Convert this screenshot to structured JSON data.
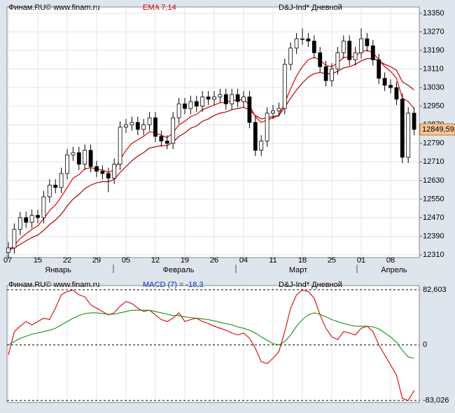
{
  "chart_data": [
    {
      "type": "candlestick",
      "source": "Финам.RU©  www.finam.ru",
      "indicator": "EMA 7,14",
      "instrument": "D&J-Ind* Дневной",
      "categories": [
        "07",
        null,
        null,
        null,
        null,
        "15",
        null,
        null,
        null,
        null,
        "22",
        null,
        null,
        null,
        null,
        "29",
        null,
        null,
        null,
        null,
        "05",
        null,
        null,
        null,
        null,
        "12",
        null,
        null,
        null,
        null,
        "19",
        null,
        null,
        null,
        null,
        "26",
        null,
        null,
        null,
        null,
        "04",
        null,
        null,
        null,
        null,
        "11",
        null,
        null,
        null,
        null,
        "18",
        null,
        null,
        null,
        null,
        "25",
        null,
        null,
        null,
        null,
        "01",
        null,
        null,
        null,
        null,
        "08",
        null,
        null,
        null,
        null
      ],
      "months": [
        "Январь",
        "Февраль",
        "Март",
        "Апрель"
      ],
      "open": [
        12320,
        12340,
        12420,
        12470,
        12450,
        12480,
        12470,
        12560,
        12610,
        12600,
        12660,
        12740,
        12750,
        12700,
        12760,
        12690,
        12670,
        12660,
        12640,
        12700,
        12860,
        12870,
        12880,
        12850,
        12870,
        12900,
        12820,
        12800,
        12790,
        12900,
        12960,
        12940,
        12970,
        12950,
        12990,
        12980,
        12990,
        13000,
        12960,
        13000,
        12970,
        12990,
        12880,
        12760,
        12800,
        12920,
        12930,
        12940,
        13130,
        13200,
        13240,
        13240,
        13230,
        13180,
        13120,
        13060,
        13110,
        13180,
        13230,
        13150,
        13180,
        13240,
        13210,
        13150,
        13070,
        13040,
        13030,
        12980,
        12730,
        12920
      ],
      "high": [
        12365,
        12445,
        12495,
        12495,
        12505,
        12505,
        12585,
        12635,
        12635,
        12685,
        12765,
        12775,
        12775,
        12785,
        12785,
        12715,
        12695,
        12685,
        12725,
        12885,
        12895,
        12905,
        12905,
        12895,
        12925,
        12925,
        12845,
        12825,
        12925,
        12985,
        12985,
        12995,
        12995,
        13015,
        13015,
        13015,
        13025,
        13025,
        13025,
        13025,
        13015,
        13015,
        12905,
        12825,
        12945,
        12955,
        12965,
        13155,
        13225,
        13265,
        13285,
        13265,
        13255,
        13205,
        13145,
        13135,
        13205,
        13255,
        13255,
        13205,
        13285,
        13265,
        13235,
        13175,
        13095,
        13065,
        13055,
        13005,
        12945,
        12945
      ],
      "low": [
        12295,
        12315,
        12395,
        12425,
        12425,
        12445,
        12445,
        12535,
        12575,
        12575,
        12635,
        12715,
        12675,
        12675,
        12665,
        12645,
        12635,
        12580,
        12615,
        12675,
        12835,
        12845,
        12825,
        12825,
        12845,
        12795,
        12775,
        12765,
        12765,
        12875,
        12915,
        12915,
        12925,
        12925,
        12955,
        12955,
        12965,
        12935,
        12935,
        12945,
        12945,
        12855,
        12735,
        12735,
        12775,
        12895,
        12905,
        12915,
        13105,
        13175,
        13215,
        13205,
        13155,
        13095,
        13035,
        13035,
        13085,
        13155,
        13125,
        13125,
        13155,
        13185,
        13125,
        13045,
        13015,
        13005,
        12955,
        12705,
        12705,
        12825
      ],
      "close": [
        12340,
        12420,
        12470,
        12450,
        12480,
        12470,
        12560,
        12610,
        12600,
        12660,
        12740,
        12750,
        12700,
        12760,
        12690,
        12670,
        12660,
        12640,
        12700,
        12860,
        12870,
        12880,
        12850,
        12870,
        12900,
        12820,
        12800,
        12790,
        12900,
        12960,
        12940,
        12970,
        12950,
        12990,
        12980,
        12990,
        13000,
        12960,
        13000,
        12970,
        12990,
        12880,
        12760,
        12800,
        12920,
        12930,
        12940,
        13130,
        13200,
        13240,
        13240,
        13230,
        13180,
        13120,
        13060,
        13110,
        13180,
        13230,
        13150,
        13180,
        13240,
        13210,
        13150,
        13070,
        13040,
        13030,
        12980,
        12730,
        12920,
        12850
      ],
      "series": [
        {
          "color": "#e00000",
          "values": [
            12330,
            12350,
            12380,
            12400,
            12420,
            12435,
            12465,
            12500,
            12525,
            12560,
            12600,
            12640,
            12655,
            12680,
            12685,
            12680,
            12675,
            12665,
            12675,
            12720,
            12760,
            12790,
            12805,
            12820,
            12840,
            12835,
            12825,
            12815,
            12835,
            12870,
            12885,
            12905,
            12915,
            12935,
            12945,
            12955,
            12965,
            12965,
            12975,
            12975,
            12980,
            12955,
            12905,
            12880,
            12890,
            12900,
            12910,
            12965,
            13025,
            13080,
            13120,
            13150,
            13160,
            13150,
            13125,
            13120,
            13135,
            13160,
            13160,
            13165,
            13185,
            13190,
            13180,
            13150,
            13120,
            13100,
            13070,
            12985,
            12970,
            12940
          ]
        },
        {
          "color": "#b00000",
          "values": [
            12330,
            12340,
            12355,
            12370,
            12385,
            12395,
            12415,
            12440,
            12460,
            12485,
            12520,
            12550,
            12570,
            12595,
            12610,
            12620,
            12625,
            12625,
            12635,
            12665,
            12690,
            12715,
            12735,
            12750,
            12770,
            12775,
            12780,
            12780,
            12795,
            12820,
            12835,
            12855,
            12865,
            12885,
            12895,
            12910,
            12920,
            12925,
            12935,
            12940,
            12945,
            12935,
            12910,
            12895,
            12900,
            12905,
            12910,
            12945,
            12985,
            13020,
            13050,
            13075,
            13090,
            13095,
            13090,
            13090,
            13100,
            13115,
            13120,
            13130,
            13145,
            13155,
            13155,
            13145,
            13130,
            13120,
            13105,
            13055,
            13040,
            13020
          ]
        }
      ],
      "up_color": "#ffffff",
      "down_color": "#000000",
      "ylim": [
        12298,
        13377
      ],
      "yticks": [
        12310,
        12390,
        12470,
        12550,
        12630,
        12710,
        12790,
        12870,
        12950,
        13030,
        13110,
        13190,
        13270,
        13350
      ],
      "last_price": {
        "value": 12849.59,
        "label": "12849,59"
      },
      "grid": true
    },
    {
      "type": "line",
      "source": "Финам.RU©  www.finam.ru",
      "indicator": "MACD (7) = -18,3",
      "instrument": "D&J-Ind* Дневной",
      "series": [
        {
          "color": "#e00000",
          "values": [
            -15,
            20,
            28,
            35,
            30,
            35,
            40,
            38,
            55,
            75,
            80,
            82,
            75,
            72,
            60,
            55,
            50,
            45,
            48,
            58,
            65,
            62,
            55,
            50,
            52,
            45,
            38,
            35,
            40,
            48,
            35,
            38,
            40,
            35,
            32,
            28,
            25,
            22,
            18,
            15,
            18,
            10,
            -5,
            -25,
            -28,
            -20,
            -10,
            20,
            55,
            75,
            82,
            80,
            70,
            45,
            25,
            12,
            8,
            20,
            18,
            15,
            25,
            28,
            20,
            0,
            -15,
            -30,
            -45,
            -80,
            -83,
            -68
          ]
        },
        {
          "color": "#109010",
          "values": [
            0,
            5,
            10,
            13,
            16,
            18,
            20,
            22,
            25,
            30,
            35,
            40,
            44,
            47,
            48,
            48,
            47,
            46,
            46,
            48,
            50,
            52,
            52,
            52,
            52,
            50,
            48,
            46,
            44,
            44,
            42,
            41,
            40,
            39,
            38,
            36,
            34,
            32,
            30,
            27,
            25,
            22,
            18,
            12,
            7,
            2,
            0,
            5,
            15,
            28,
            38,
            45,
            48,
            46,
            42,
            38,
            35,
            32,
            30,
            28,
            28,
            28,
            27,
            24,
            18,
            12,
            4,
            -8,
            -18,
            -20
          ]
        }
      ],
      "ylim": [
        -86.1,
        88.8
      ],
      "yticks": [
        {
          "value": -83.026,
          "label": "-83,026"
        },
        0,
        {
          "value": 82.603,
          "label": "82,603"
        }
      ]
    }
  ]
}
